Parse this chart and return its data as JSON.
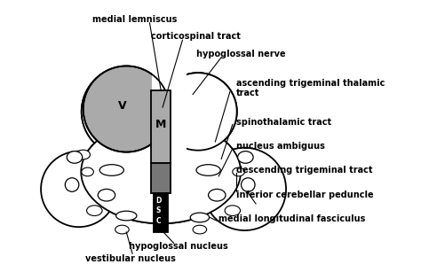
{
  "background_color": "#ffffff",
  "figure_size": [
    4.74,
    3.16
  ],
  "dpi": 100,
  "labels": {
    "medial_lemniscus": "medial lemniscus",
    "corticospinal_tract": "corticospinal tract",
    "hypoglossal_nerve": "hypoglossal nerve",
    "ascending_trigeminal": "ascending trigeminal thalamic\ntract",
    "spinothalamic_tract": "spinothalamic tract",
    "nucleus_ambiguus": "nucleus ambiguus",
    "descending_trigeminal": "descending trigeminal tract",
    "inferior_cerebellar": "inferior cerebellar peduncle",
    "medial_longitudinal": "medial longitudinal fasciculus",
    "hypoglossal_nucleus": "hypoglossal nucleus",
    "vestibular_nucleus": "vestibular nucleus"
  },
  "colors": {
    "outline": "#000000",
    "fill_white": "#ffffff",
    "fill_gray_light": "#aaaaaa",
    "fill_gray_medium": "#777777",
    "fill_black": "#000000"
  },
  "label_fontsize": 7.0,
  "label_fontweight": "bold"
}
